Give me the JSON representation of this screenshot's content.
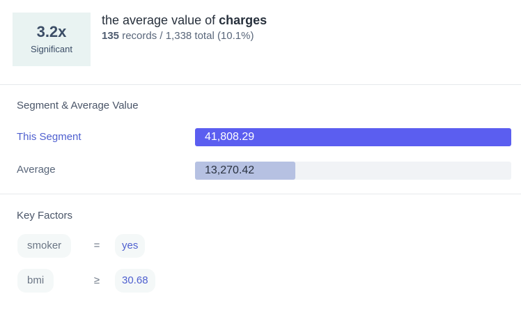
{
  "header": {
    "badge_value": "3.2x",
    "badge_label": "Significant",
    "title_prefix": "the average value of ",
    "title_metric": "charges",
    "sub_count": "135",
    "sub_rest": " records / 1,338 total (10.1%)"
  },
  "comparison": {
    "section_title": "Segment & Average Value",
    "rows": [
      {
        "label": "This Segment",
        "value": "41,808.29",
        "fraction": 1.0
      },
      {
        "label": "Average",
        "value": "13,270.42",
        "fraction": 0.317
      }
    ]
  },
  "factors": {
    "section_title": "Key Factors",
    "items": [
      {
        "key": "smoker",
        "operator": "=",
        "value": "yes"
      },
      {
        "key": "bmi",
        "operator": "≥",
        "value": "30.68"
      }
    ]
  },
  "colors": {
    "segment_bar": "#5b5ef0",
    "average_bar": "#b6c1e2",
    "badge_bg": "#e9f3f2"
  }
}
